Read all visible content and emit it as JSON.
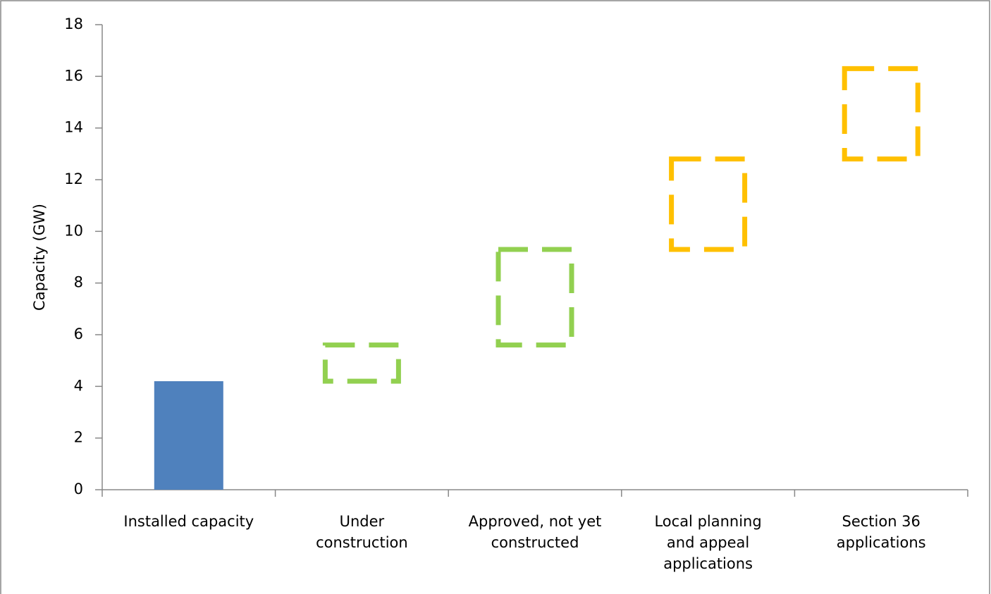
{
  "chart_data": {
    "type": "waterfall",
    "y_label": "Capacity (GW)",
    "categories": [
      [
        "Installed capacity"
      ],
      [
        "Under",
        "construction"
      ],
      [
        "Approved, not yet",
        "constructed"
      ],
      [
        "Local planning",
        "and appeal",
        "applications"
      ],
      [
        "Section 36",
        "applications"
      ]
    ],
    "values": [
      4.2,
      1.4,
      3.7,
      3.5,
      3.5
    ],
    "colors": [
      "#4f81bd",
      "#92d050",
      "#92d050",
      "#ffc000",
      "#ffc000"
    ],
    "dashed": [
      false,
      true,
      true,
      true,
      true
    ],
    "ylim": [
      0,
      18
    ],
    "yticks": [
      0,
      2,
      4,
      6,
      8,
      10,
      12,
      14,
      16,
      18
    ],
    "grid": false
  }
}
